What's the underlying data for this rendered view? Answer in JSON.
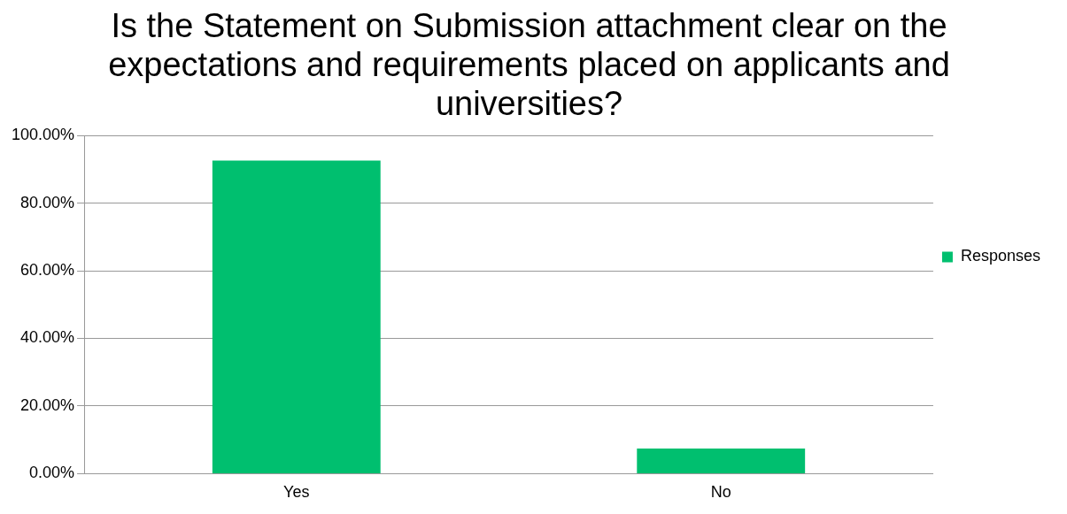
{
  "chart_data": {
    "type": "bar",
    "title": "Is the Statement on Submission attachment clear on the expectations and requirements placed on applicants and universities?",
    "categories": [
      "Yes",
      "No"
    ],
    "series": [
      {
        "name": "Responses",
        "color": "#00bf6f",
        "values": [
          92.6,
          7.4
        ]
      }
    ],
    "ylim": [
      0,
      100
    ],
    "yticks": [
      {
        "value": 0,
        "label": "0.00%"
      },
      {
        "value": 20,
        "label": "20.00%"
      },
      {
        "value": 40,
        "label": "40.00%"
      },
      {
        "value": 60,
        "label": "60.00%"
      },
      {
        "value": 80,
        "label": "80.00%"
      },
      {
        "value": 100,
        "label": "100.00%"
      }
    ],
    "grid": "y",
    "legend": "right"
  }
}
